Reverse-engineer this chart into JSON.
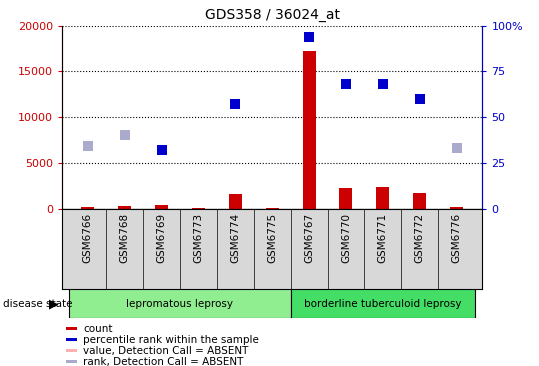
{
  "title": "GDS358 / 36024_at",
  "samples": [
    "GSM6766",
    "GSM6768",
    "GSM6769",
    "GSM6773",
    "GSM6774",
    "GSM6775",
    "GSM6767",
    "GSM6770",
    "GSM6771",
    "GSM6772",
    "GSM6776"
  ],
  "groups": [
    {
      "name": "lepromatous leprosy",
      "samples": [
        "GSM6766",
        "GSM6768",
        "GSM6769",
        "GSM6773",
        "GSM6774",
        "GSM6775"
      ],
      "color": "#90EE90"
    },
    {
      "name": "borderline tuberculoid leprosy",
      "samples": [
        "GSM6767",
        "GSM6770",
        "GSM6771",
        "GSM6772",
        "GSM6776"
      ],
      "color": "#44DD66"
    }
  ],
  "red_bars": {
    "GSM6766": 150,
    "GSM6768": 250,
    "GSM6769": 400,
    "GSM6773": 80,
    "GSM6774": 1600,
    "GSM6775": 100,
    "GSM6767": 17200,
    "GSM6770": 2200,
    "GSM6771": 2400,
    "GSM6772": 1700,
    "GSM6776": 150
  },
  "blue_dots_pct": {
    "GSM6769": 32,
    "GSM6774": 57,
    "GSM6767": 94,
    "GSM6770": 68,
    "GSM6771": 68,
    "GSM6772": 60
  },
  "pink_bars": {
    "GSM6766": 150,
    "GSM6768": 250,
    "GSM6773": 80,
    "GSM6775": 100,
    "GSM6776": 150
  },
  "lavender_dots_pct": {
    "GSM6766": 34,
    "GSM6768": 40,
    "GSM6776": 33
  },
  "ylim_left": [
    0,
    20000
  ],
  "ylim_right": [
    0,
    100
  ],
  "yticks_left": [
    0,
    5000,
    10000,
    15000,
    20000
  ],
  "yticks_right": [
    0,
    25,
    50,
    75,
    100
  ],
  "left_color": "#CC0000",
  "right_color": "#0000CC",
  "bar_width": 0.35,
  "dot_size": 50,
  "legend_labels": [
    "count",
    "percentile rank within the sample",
    "value, Detection Call = ABSENT",
    "rank, Detection Call = ABSENT"
  ],
  "legend_colors": [
    "#CC0000",
    "#0000CC",
    "#FFB0B0",
    "#AAAACC"
  ]
}
